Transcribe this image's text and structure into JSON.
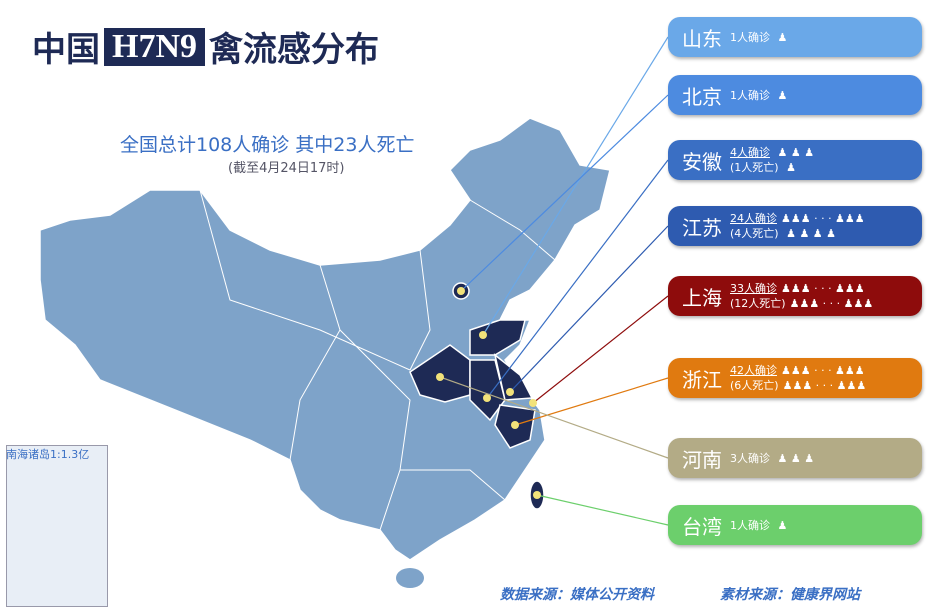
{
  "header": {
    "title_prefix": "中国",
    "title_highlight": "H7N9",
    "title_suffix": "禽流感分布"
  },
  "summary": {
    "total": "全国总计108人确诊  其中23人死亡",
    "as_of": "(截至4月24日17时)"
  },
  "provinces": [
    {
      "name": "山东",
      "cases": "1人确诊",
      "color": "#6aa8e8"
    },
    {
      "name": "北京",
      "cases": "1人确诊",
      "color": "#4d8be0"
    },
    {
      "name": "安徽",
      "cases": "4人确诊",
      "deaths": "(1人死亡)",
      "color": "#3a6fc4"
    },
    {
      "name": "江苏",
      "cases": "24人确诊",
      "deaths": "(4人死亡)",
      "color": "#2e5bb0"
    },
    {
      "name": "上海",
      "cases": "33人确诊",
      "deaths": "(12人死亡)",
      "color": "#8e0c0c"
    },
    {
      "name": "浙江",
      "cases": "42人确诊",
      "deaths": "(6人死亡)",
      "color": "#e07a10"
    },
    {
      "name": "河南",
      "cases": "3人确诊",
      "color": "#b3ab86"
    },
    {
      "name": "台湾",
      "cases": "1人确诊",
      "color": "#6ccf6c"
    }
  ],
  "inset": {
    "label": "南海诸岛1:1.3亿"
  },
  "footer": {
    "data_source": "数据来源：媒体公开资料",
    "material_source": "素材来源：健康界网站"
  }
}
